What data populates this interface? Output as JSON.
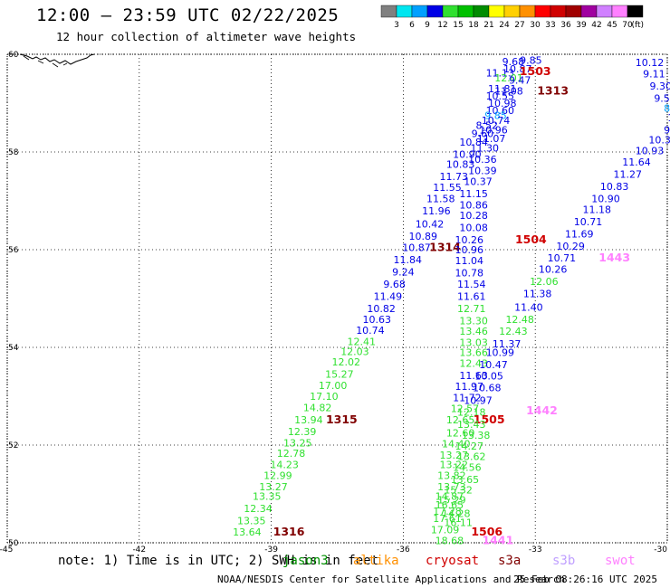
{
  "header": {
    "title": "12:00 – 23:59 UTC 02/22/2025",
    "subtitle": "12 hour collection of altimeter wave heights"
  },
  "colorbar": {
    "labels": [
      "3",
      "6",
      "9",
      "12",
      "15",
      "18",
      "21",
      "24",
      "27",
      "30",
      "33",
      "36",
      "39",
      "42",
      "45",
      "70"
    ],
    "unit": "(ft)",
    "colors": [
      "#808080",
      "#00e6f0",
      "#00a0ff",
      "#0000e6",
      "#30e030",
      "#00c000",
      "#008c00",
      "#ffff00",
      "#ffd000",
      "#ff9000",
      "#ff0000",
      "#d00000",
      "#a00000",
      "#a000a0",
      "#d080ff",
      "#ff80ff",
      "#000000"
    ]
  },
  "map": {
    "lat_labels": [
      "60",
      "58",
      "56",
      "54",
      "52",
      "50"
    ],
    "lon_labels": [
      "-45",
      "-42",
      "-39",
      "-36",
      "-33",
      "-30"
    ],
    "grid_style": "dotted"
  },
  "legend": {
    "note": "note: 1) Time is in UTC; 2) SWH is in feet",
    "satellites": [
      {
        "name": "jason3",
        "color": "#009000"
      },
      {
        "name": "altika",
        "color": "#ff9000"
      },
      {
        "name": "cryosat",
        "color": "#d00000"
      },
      {
        "name": "s3a",
        "color": "#800000"
      },
      {
        "name": "s3b",
        "color": "#c0a0ff"
      },
      {
        "name": "swot",
        "color": "#ff80ff"
      }
    ]
  },
  "footer": {
    "agency": "NOAA/NESDIS Center for Satellite Applications and Research",
    "timestamp": "25 Feb 08:26:16 UTC 2025"
  },
  "observations": [
    {
      "text": "9.68",
      "color": "#0000e6",
      "lon": -33.5,
      "lat": 59.85
    },
    {
      "text": "9.85",
      "color": "#0000e6",
      "lon": -33.1,
      "lat": 59.88
    },
    {
      "text": "10.12",
      "color": "#0000e6",
      "lon": -30.4,
      "lat": 59.83
    },
    {
      "text": "10.87",
      "color": "#0000e6",
      "lon": -33.4,
      "lat": 59.7
    },
    {
      "text": "1503",
      "color": "#d00000",
      "lon": -33.0,
      "lat": 59.65
    },
    {
      "text": "11.13",
      "color": "#0000e6",
      "lon": -33.8,
      "lat": 59.62
    },
    {
      "text": "9.11",
      "color": "#0000e6",
      "lon": -30.3,
      "lat": 59.6
    },
    {
      "text": "12.01",
      "color": "#30e030",
      "lon": -33.6,
      "lat": 59.52
    },
    {
      "text": "9.47",
      "color": "#0000e6",
      "lon": -33.35,
      "lat": 59.47
    },
    {
      "text": "9.30",
      "color": "#0000e6",
      "lon": -30.15,
      "lat": 59.35
    },
    {
      "text": "11.81",
      "color": "#0000e6",
      "lon": -33.75,
      "lat": 59.3
    },
    {
      "text": "11.08",
      "color": "#0000e6",
      "lon": -33.6,
      "lat": 59.25
    },
    {
      "text": "1313",
      "color": "#800000",
      "lon": -32.6,
      "lat": 59.25
    },
    {
      "text": "9.56",
      "color": "#0000e6",
      "lon": -30.05,
      "lat": 59.1
    },
    {
      "text": "10.55",
      "color": "#0000e6",
      "lon": -33.8,
      "lat": 59.15
    },
    {
      "text": "10.98",
      "color": "#0000e6",
      "lon": -33.75,
      "lat": 59.0
    },
    {
      "text": "8.9",
      "color": "#00a0ff",
      "lon": -29.9,
      "lat": 58.9
    },
    {
      "text": "10.60",
      "color": "#0000e6",
      "lon": -33.8,
      "lat": 58.85
    },
    {
      "text": "9.85",
      "color": "#00a0ff",
      "lon": -33.9,
      "lat": 58.75
    },
    {
      "text": "10",
      "color": "#0000e6",
      "lon": -29.85,
      "lat": 58.7
    },
    {
      "text": "10.74",
      "color": "#0000e6",
      "lon": -33.9,
      "lat": 58.65
    },
    {
      "text": "8.52",
      "color": "#0000e6",
      "lon": -34.1,
      "lat": 58.55
    },
    {
      "text": "10.96",
      "color": "#0000e6",
      "lon": -33.95,
      "lat": 58.45
    },
    {
      "text": "9.5",
      "color": "#0000e6",
      "lon": -29.9,
      "lat": 58.45
    },
    {
      "text": "9.60",
      "color": "#0000e6",
      "lon": -34.2,
      "lat": 58.38
    },
    {
      "text": "11.07",
      "color": "#0000e6",
      "lon": -34.0,
      "lat": 58.28
    },
    {
      "text": "10.39",
      "color": "#0000e6",
      "lon": -30.1,
      "lat": 58.25
    },
    {
      "text": "10.84",
      "color": "#0000e6",
      "lon": -34.4,
      "lat": 58.2
    },
    {
      "text": "11.30",
      "color": "#0000e6",
      "lon": -34.15,
      "lat": 58.08
    },
    {
      "text": "10.93",
      "color": "#0000e6",
      "lon": -30.4,
      "lat": 58.03
    },
    {
      "text": "10.90",
      "color": "#0000e6",
      "lon": -34.55,
      "lat": 57.95
    },
    {
      "text": "10.36",
      "color": "#0000e6",
      "lon": -34.2,
      "lat": 57.85
    },
    {
      "text": "11.64",
      "color": "#0000e6",
      "lon": -30.7,
      "lat": 57.8
    },
    {
      "text": "10.83",
      "color": "#0000e6",
      "lon": -34.7,
      "lat": 57.75
    },
    {
      "text": "10.39",
      "color": "#0000e6",
      "lon": -34.2,
      "lat": 57.62
    },
    {
      "text": "11.27",
      "color": "#0000e6",
      "lon": -30.9,
      "lat": 57.55
    },
    {
      "text": "11.73",
      "color": "#0000e6",
      "lon": -34.85,
      "lat": 57.5
    },
    {
      "text": "10.37",
      "color": "#0000e6",
      "lon": -34.3,
      "lat": 57.4
    },
    {
      "text": "10.83",
      "color": "#0000e6",
      "lon": -31.2,
      "lat": 57.3
    },
    {
      "text": "11.55",
      "color": "#0000e6",
      "lon": -35.0,
      "lat": 57.28
    },
    {
      "text": "11.15",
      "color": "#0000e6",
      "lon": -34.4,
      "lat": 57.15
    },
    {
      "text": "10.90",
      "color": "#0000e6",
      "lon": -31.4,
      "lat": 57.05
    },
    {
      "text": "11.58",
      "color": "#0000e6",
      "lon": -35.15,
      "lat": 57.05
    },
    {
      "text": "10.86",
      "color": "#0000e6",
      "lon": -34.4,
      "lat": 56.92
    },
    {
      "text": "11.18",
      "color": "#0000e6",
      "lon": -31.6,
      "lat": 56.82
    },
    {
      "text": "11.96",
      "color": "#0000e6",
      "lon": -35.25,
      "lat": 56.8
    },
    {
      "text": "10.28",
      "color": "#0000e6",
      "lon": -34.4,
      "lat": 56.7
    },
    {
      "text": "10.71",
      "color": "#0000e6",
      "lon": -31.8,
      "lat": 56.57
    },
    {
      "text": "10.42",
      "color": "#0000e6",
      "lon": -35.4,
      "lat": 56.53
    },
    {
      "text": "10.08",
      "color": "#0000e6",
      "lon": -34.4,
      "lat": 56.45
    },
    {
      "text": "11.69",
      "color": "#0000e6",
      "lon": -32.0,
      "lat": 56.32
    },
    {
      "text": "10.89",
      "color": "#0000e6",
      "lon": -35.55,
      "lat": 56.28
    },
    {
      "text": "10.26",
      "color": "#0000e6",
      "lon": -34.5,
      "lat": 56.2
    },
    {
      "text": "1504",
      "color": "#d00000",
      "lon": -33.1,
      "lat": 56.2
    },
    {
      "text": "10.29",
      "color": "#0000e6",
      "lon": -32.2,
      "lat": 56.07
    },
    {
      "text": "10.87",
      "color": "#0000e6",
      "lon": -35.7,
      "lat": 56.05
    },
    {
      "text": "1314",
      "color": "#800000",
      "lon": -35.05,
      "lat": 56.05
    },
    {
      "text": "10.96",
      "color": "#0000e6",
      "lon": -34.5,
      "lat": 56.0
    },
    {
      "text": "10.71",
      "color": "#0000e6",
      "lon": -32.4,
      "lat": 55.83
    },
    {
      "text": "1443",
      "color": "#ff80ff",
      "lon": -31.2,
      "lat": 55.83
    },
    {
      "text": "11.84",
      "color": "#0000e6",
      "lon": -35.9,
      "lat": 55.8
    },
    {
      "text": "11.04",
      "color": "#0000e6",
      "lon": -34.5,
      "lat": 55.78
    },
    {
      "text": "10.26",
      "color": "#0000e6",
      "lon": -32.6,
      "lat": 55.6
    },
    {
      "text": "9.24",
      "color": "#0000e6",
      "lon": -36.0,
      "lat": 55.55
    },
    {
      "text": "10.78",
      "color": "#0000e6",
      "lon": -34.5,
      "lat": 55.53
    },
    {
      "text": "12.06",
      "color": "#30e030",
      "lon": -32.8,
      "lat": 55.35
    },
    {
      "text": "9.68",
      "color": "#0000e6",
      "lon": -36.2,
      "lat": 55.3
    },
    {
      "text": "11.54",
      "color": "#0000e6",
      "lon": -34.45,
      "lat": 55.3
    },
    {
      "text": "11.38",
      "color": "#0000e6",
      "lon": -32.95,
      "lat": 55.1
    },
    {
      "text": "11.49",
      "color": "#0000e6",
      "lon": -36.35,
      "lat": 55.05
    },
    {
      "text": "11.61",
      "color": "#0000e6",
      "lon": -34.45,
      "lat": 55.05
    },
    {
      "text": "10.82",
      "color": "#0000e6",
      "lon": -36.5,
      "lat": 54.8
    },
    {
      "text": "12.71",
      "color": "#30e030",
      "lon": -34.45,
      "lat": 54.8
    },
    {
      "text": "11.40",
      "color": "#0000e6",
      "lon": -33.15,
      "lat": 54.82
    },
    {
      "text": "10.63",
      "color": "#0000e6",
      "lon": -36.6,
      "lat": 54.57
    },
    {
      "text": "13.30",
      "color": "#30e030",
      "lon": -34.4,
      "lat": 54.55
    },
    {
      "text": "12.48",
      "color": "#30e030",
      "lon": -33.35,
      "lat": 54.57
    },
    {
      "text": "10.74",
      "color": "#0000e6",
      "lon": -36.75,
      "lat": 54.35
    },
    {
      "text": "13.46",
      "color": "#30e030",
      "lon": -34.4,
      "lat": 54.33
    },
    {
      "text": "12.43",
      "color": "#30e030",
      "lon": -33.5,
      "lat": 54.33
    },
    {
      "text": "12.41",
      "color": "#30e030",
      "lon": -36.95,
      "lat": 54.12
    },
    {
      "text": "13.03",
      "color": "#30e030",
      "lon": -34.4,
      "lat": 54.1
    },
    {
      "text": "11.37",
      "color": "#0000e6",
      "lon": -33.65,
      "lat": 54.07
    },
    {
      "text": "12.03",
      "color": "#30e030",
      "lon": -37.1,
      "lat": 53.92
    },
    {
      "text": "13.66",
      "color": "#30e030",
      "lon": -34.4,
      "lat": 53.9
    },
    {
      "text": "10.99",
      "color": "#0000e6",
      "lon": -33.8,
      "lat": 53.9
    },
    {
      "text": "12.02",
      "color": "#30e030",
      "lon": -37.3,
      "lat": 53.7
    },
    {
      "text": "12.43",
      "color": "#30e030",
      "lon": -34.4,
      "lat": 53.68
    },
    {
      "text": "10.47",
      "color": "#0000e6",
      "lon": -33.95,
      "lat": 53.65
    },
    {
      "text": "15.27",
      "color": "#30e030",
      "lon": -37.45,
      "lat": 53.45
    },
    {
      "text": "11.63",
      "color": "#0000e6",
      "lon": -34.4,
      "lat": 53.43
    },
    {
      "text": "10.05",
      "color": "#0000e6",
      "lon": -34.05,
      "lat": 53.42
    },
    {
      "text": "17.00",
      "color": "#30e030",
      "lon": -37.6,
      "lat": 53.22
    },
    {
      "text": "11.97",
      "color": "#0000e6",
      "lon": -34.5,
      "lat": 53.2
    },
    {
      "text": "10.68",
      "color": "#0000e6",
      "lon": -34.1,
      "lat": 53.18
    },
    {
      "text": "17.10",
      "color": "#30e030",
      "lon": -37.8,
      "lat": 53.0
    },
    {
      "text": "11.72",
      "color": "#0000e6",
      "lon": -34.55,
      "lat": 52.97
    },
    {
      "text": "10.97",
      "color": "#0000e6",
      "lon": -34.3,
      "lat": 52.92
    },
    {
      "text": "14.82",
      "color": "#30e030",
      "lon": -37.95,
      "lat": 52.77
    },
    {
      "text": "12.57",
      "color": "#30e030",
      "lon": -34.6,
      "lat": 52.75
    },
    {
      "text": "12.18",
      "color": "#30e030",
      "lon": -34.45,
      "lat": 52.68
    },
    {
      "text": "1442",
      "color": "#ff80ff",
      "lon": -32.85,
      "lat": 52.7
    },
    {
      "text": "13.94",
      "color": "#30e030",
      "lon": -38.15,
      "lat": 52.52
    },
    {
      "text": "1315",
      "color": "#800000",
      "lon": -37.4,
      "lat": 52.52
    },
    {
      "text": "12.65",
      "color": "#30e030",
      "lon": -34.7,
      "lat": 52.52
    },
    {
      "text": "1505",
      "color": "#d00000",
      "lon": -34.05,
      "lat": 52.52
    },
    {
      "text": "13.43",
      "color": "#30e030",
      "lon": -34.45,
      "lat": 52.43
    },
    {
      "text": "12.39",
      "color": "#30e030",
      "lon": -38.3,
      "lat": 52.28
    },
    {
      "text": "12.60",
      "color": "#30e030",
      "lon": -34.7,
      "lat": 52.25
    },
    {
      "text": "13.38",
      "color": "#30e030",
      "lon": -34.35,
      "lat": 52.2
    },
    {
      "text": "13.25",
      "color": "#30e030",
      "lon": -38.4,
      "lat": 52.05
    },
    {
      "text": "14.40",
      "color": "#30e030",
      "lon": -34.8,
      "lat": 52.03
    },
    {
      "text": "14.27",
      "color": "#30e030",
      "lon": -34.5,
      "lat": 51.98
    },
    {
      "text": "12.78",
      "color": "#30e030",
      "lon": -38.55,
      "lat": 51.83
    },
    {
      "text": "13.27",
      "color": "#30e030",
      "lon": -34.85,
      "lat": 51.8
    },
    {
      "text": "13.62",
      "color": "#30e030",
      "lon": -34.45,
      "lat": 51.77
    },
    {
      "text": "14.23",
      "color": "#30e030",
      "lon": -38.7,
      "lat": 51.6
    },
    {
      "text": "13.22",
      "color": "#30e030",
      "lon": -34.85,
      "lat": 51.6
    },
    {
      "text": "14.56",
      "color": "#30e030",
      "lon": -34.55,
      "lat": 51.55
    },
    {
      "text": "12.99",
      "color": "#30e030",
      "lon": -38.85,
      "lat": 51.38
    },
    {
      "text": "13.82",
      "color": "#30e030",
      "lon": -34.9,
      "lat": 51.38
    },
    {
      "text": "13.65",
      "color": "#30e030",
      "lon": -34.6,
      "lat": 51.3
    },
    {
      "text": "13.27",
      "color": "#30e030",
      "lon": -38.95,
      "lat": 51.15
    },
    {
      "text": "13.73",
      "color": "#30e030",
      "lon": -34.9,
      "lat": 51.15
    },
    {
      "text": "15.32",
      "color": "#30e030",
      "lon": -34.75,
      "lat": 51.08
    },
    {
      "text": "13.35",
      "color": "#30e030",
      "lon": -39.1,
      "lat": 50.95
    },
    {
      "text": "14.87",
      "color": "#30e030",
      "lon": -34.95,
      "lat": 50.95
    },
    {
      "text": "15.29",
      "color": "#30e030",
      "lon": -34.9,
      "lat": 50.88
    },
    {
      "text": "12.34",
      "color": "#30e030",
      "lon": -39.3,
      "lat": 50.7
    },
    {
      "text": "16.65",
      "color": "#30e030",
      "lon": -34.95,
      "lat": 50.78
    },
    {
      "text": "17.28",
      "color": "#30e030",
      "lon": -35.0,
      "lat": 50.65
    },
    {
      "text": "14.28",
      "color": "#30e030",
      "lon": -34.8,
      "lat": 50.6
    },
    {
      "text": "13.35",
      "color": "#30e030",
      "lon": -39.45,
      "lat": 50.45
    },
    {
      "text": "17.61",
      "color": "#30e030",
      "lon": -35.0,
      "lat": 50.5
    },
    {
      "text": "16.11",
      "color": "#30e030",
      "lon": -34.75,
      "lat": 50.42
    },
    {
      "text": "13.64",
      "color": "#30e030",
      "lon": -39.55,
      "lat": 50.22
    },
    {
      "text": "1316",
      "color": "#800000",
      "lon": -38.6,
      "lat": 50.22
    },
    {
      "text": "17.09",
      "color": "#30e030",
      "lon": -35.05,
      "lat": 50.27
    },
    {
      "text": "1506",
      "color": "#d00000",
      "lon": -34.1,
      "lat": 50.22
    },
    {
      "text": "18.68",
      "color": "#30e030",
      "lon": -34.95,
      "lat": 50.05
    },
    {
      "text": "1441",
      "color": "#ff80ff",
      "lon": -33.85,
      "lat": 50.05
    }
  ]
}
